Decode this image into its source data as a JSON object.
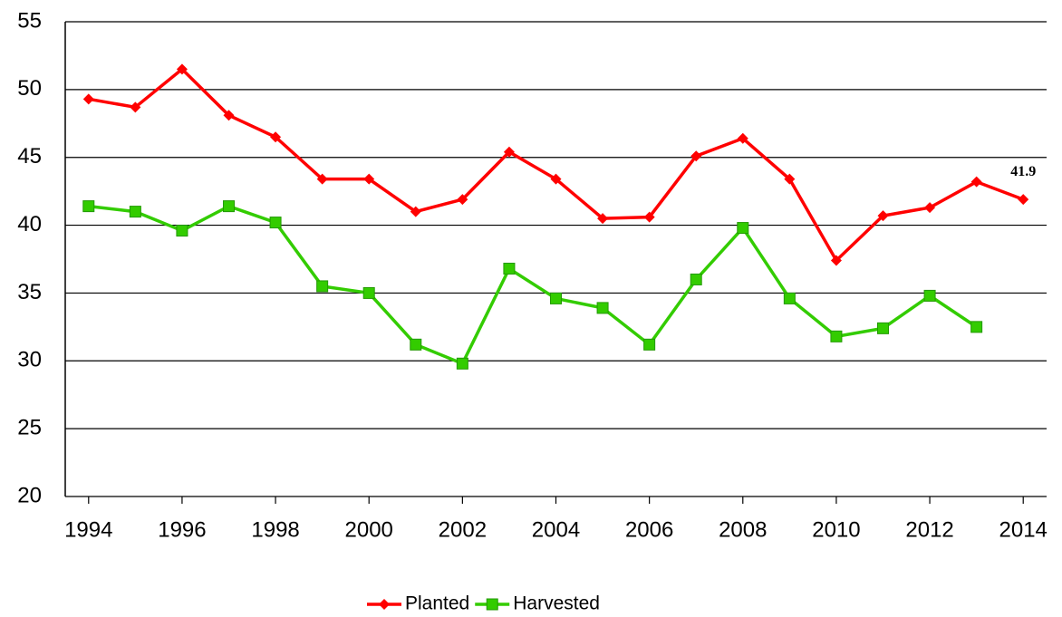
{
  "chart_data": {
    "type": "line",
    "x": [
      1994,
      1995,
      1996,
      1997,
      1998,
      1999,
      2000,
      2001,
      2002,
      2003,
      2004,
      2005,
      2006,
      2007,
      2008,
      2009,
      2010,
      2011,
      2012,
      2013,
      2014
    ],
    "series": [
      {
        "name": "Planted",
        "color": "#ff0000",
        "marker": "diamond",
        "values": [
          49.3,
          48.7,
          51.5,
          48.1,
          46.5,
          43.4,
          43.4,
          41.0,
          41.9,
          45.4,
          43.4,
          40.5,
          40.6,
          45.1,
          46.4,
          43.4,
          37.4,
          40.7,
          41.3,
          43.2,
          41.9
        ],
        "value_labels": [
          null,
          null,
          null,
          null,
          null,
          null,
          null,
          null,
          null,
          null,
          null,
          null,
          null,
          null,
          null,
          null,
          null,
          null,
          null,
          null,
          "41.9"
        ]
      },
      {
        "name": "Harvested",
        "color": "#33cc00",
        "marker": "square",
        "values": [
          41.4,
          41.0,
          39.6,
          41.4,
          40.2,
          35.5,
          35.0,
          31.2,
          29.8,
          36.8,
          34.6,
          33.9,
          31.2,
          36.0,
          39.8,
          34.6,
          31.8,
          32.4,
          34.8,
          32.5,
          null
        ]
      }
    ],
    "xlim": [
      1993.5,
      2014.5
    ],
    "xticks": [
      1994,
      1996,
      1998,
      2000,
      2002,
      2004,
      2006,
      2008,
      2010,
      2012,
      2014
    ],
    "ylim": [
      20,
      55
    ],
    "yticks": [
      20,
      25,
      30,
      35,
      40,
      45,
      50,
      55
    ],
    "grid": true,
    "legend": "bottom"
  }
}
